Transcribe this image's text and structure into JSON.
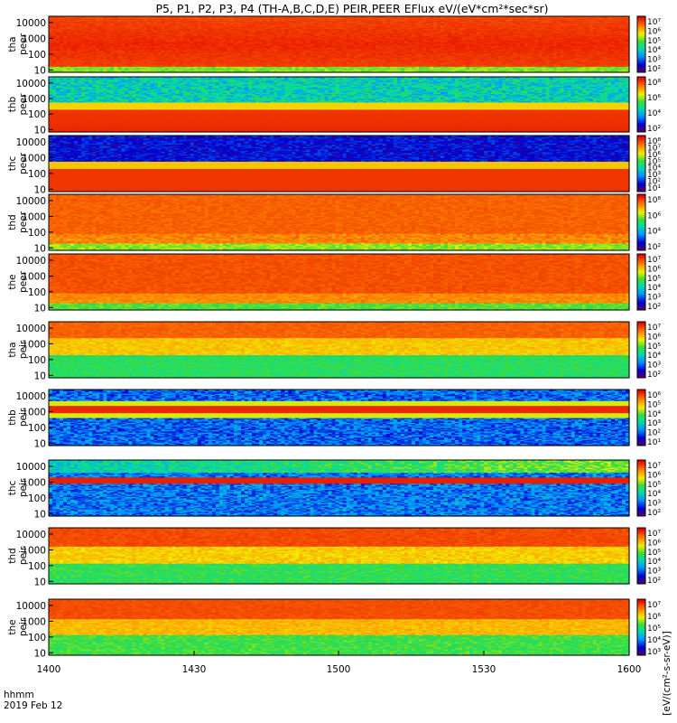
{
  "chart_data": {
    "type": "heatmap",
    "title": "P5, P1, P2, P3, P4 (TH-A,B,C,D,E) PEIR,PEER EFlux eV/(eV*cm²*sec*sr)",
    "x_ticks": [
      "1400",
      "1430",
      "1500",
      "1530",
      "1600"
    ],
    "x_range_minutes": [
      0,
      120
    ],
    "footer": {
      "units": "hhmm",
      "date": "2019 Feb 12"
    },
    "y_scale": "log",
    "y_ticks": [
      "10",
      "100",
      "1000",
      "10000"
    ],
    "y_range_eV": [
      7,
      25000
    ],
    "colorbar_label": "[eV/(cm²-s-sr-eV)]",
    "panels": [
      {
        "label": [
          "tha",
          "peer"
        ],
        "profile": "thaPeer",
        "cb_ticks": [
          "10⁷",
          "10⁶",
          "10⁵",
          "10⁴",
          "10³",
          "10²"
        ]
      },
      {
        "label": [
          "thb",
          "peer"
        ],
        "profile": "thbPeer",
        "cb_ticks": [
          "10⁸",
          "10⁶",
          "10⁴",
          "10²"
        ]
      },
      {
        "label": [
          "thc",
          "peer"
        ],
        "profile": "thcPeer",
        "cb_ticks": [
          "10⁸",
          "10⁷",
          "10⁶",
          "10⁵",
          "10⁴",
          "10³",
          "10²",
          "10¹"
        ]
      },
      {
        "label": [
          "thd",
          "peer"
        ],
        "profile": "thdPeer",
        "cb_ticks": [
          "10⁸",
          "10⁶",
          "10⁴",
          "10²"
        ]
      },
      {
        "label": [
          "the",
          "peer"
        ],
        "profile": "thePeer",
        "cb_ticks": [
          "10⁷",
          "10⁶",
          "10⁵",
          "10⁴",
          "10³",
          "10²"
        ]
      },
      {
        "label": [
          "tha",
          "peir"
        ],
        "profile": "thaPeir",
        "cb_ticks": [
          "10⁷",
          "10⁶",
          "10⁵",
          "10⁴",
          "10³",
          "10²"
        ]
      },
      {
        "label": [
          "thb",
          "peir"
        ],
        "profile": "thbPeir",
        "cb_ticks": [
          "10⁶",
          "10⁵",
          "10⁴",
          "10³",
          "10²",
          "10¹"
        ]
      },
      {
        "label": [
          "thc",
          "peir"
        ],
        "profile": "thcPeir",
        "cb_ticks": [
          "10⁷",
          "10⁶",
          "10⁵",
          "10⁴",
          "10³",
          "10²"
        ]
      },
      {
        "label": [
          "thd",
          "peir"
        ],
        "profile": "thdPeir",
        "cb_ticks": [
          "10⁷",
          "10⁶",
          "10⁵",
          "10⁴",
          "10³",
          "10²"
        ]
      },
      {
        "label": [
          "the",
          "peir"
        ],
        "profile": "thePeir",
        "cb_ticks": [
          "10⁷",
          "10⁶",
          "10⁵",
          "10⁴",
          "10³"
        ]
      }
    ]
  }
}
